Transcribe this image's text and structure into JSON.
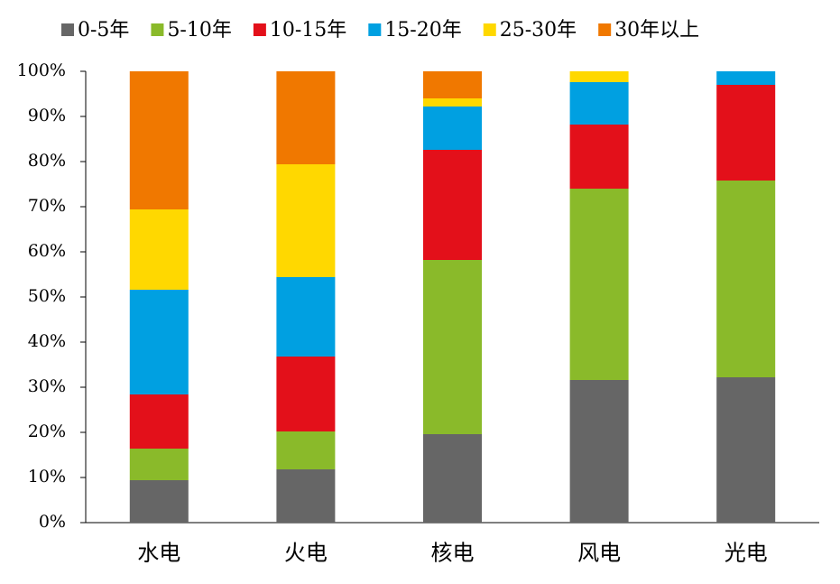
{
  "chart_data": {
    "type": "stacked-bar",
    "categories": [
      "水电",
      "火电",
      "核电",
      "风电",
      "光电"
    ],
    "series": [
      {
        "name": "0-5年",
        "color": "#666666",
        "values": [
          9.4,
          11.8,
          19.6,
          31.6,
          32.2
        ]
      },
      {
        "name": "5-10年",
        "color": "#8aba2a",
        "values": [
          7.0,
          8.4,
          38.6,
          42.4,
          43.6
        ]
      },
      {
        "name": "10-15年",
        "color": "#e3101a",
        "values": [
          12.0,
          16.6,
          24.4,
          14.2,
          21.2
        ]
      },
      {
        "name": "15-20年",
        "color": "#00a0e1",
        "values": [
          23.2,
          17.6,
          9.6,
          9.4,
          3.0
        ]
      },
      {
        "name": "25-30年",
        "color": "#ffd800",
        "values": [
          17.8,
          25.0,
          1.8,
          2.4,
          0
        ]
      },
      {
        "name": "30年以上",
        "color": "#f07800",
        "values": [
          30.6,
          20.6,
          6.0,
          0,
          0
        ]
      }
    ],
    "ylim": [
      0,
      100
    ],
    "yticks": [
      {
        "value": 0,
        "label": "0%"
      },
      {
        "value": 10,
        "label": "10%"
      },
      {
        "value": 20,
        "label": "20%"
      },
      {
        "value": 30,
        "label": "30%"
      },
      {
        "value": 40,
        "label": "40%"
      },
      {
        "value": 50,
        "label": "50%"
      },
      {
        "value": 60,
        "label": "60%"
      },
      {
        "value": 70,
        "label": "70%"
      },
      {
        "value": 80,
        "label": "80%"
      },
      {
        "value": 90,
        "label": "90%"
      },
      {
        "value": 100,
        "label": "100%"
      }
    ],
    "grid": false,
    "legend": "top"
  }
}
